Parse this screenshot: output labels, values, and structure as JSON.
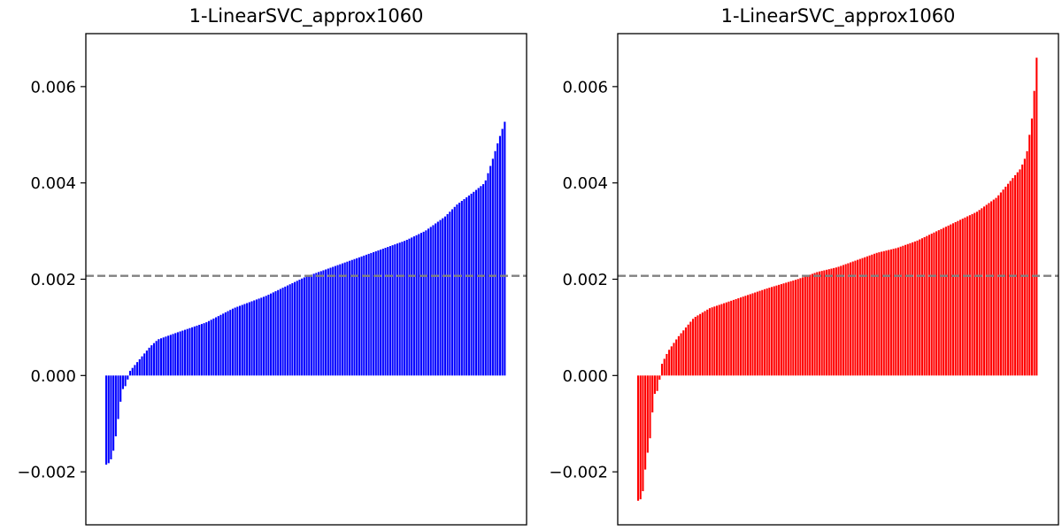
{
  "chart_data": [
    {
      "type": "bar",
      "title": "1-LinearSVC_approx1060",
      "xlabel": "",
      "ylabel": "",
      "ylim": [
        -0.0031,
        0.0071
      ],
      "yticks": [
        -0.002,
        0.0,
        0.002,
        0.004,
        0.006
      ],
      "ytick_labels": [
        "−0.002",
        "0.000",
        "0.002",
        "0.004",
        "0.006"
      ],
      "x_ticks_visible": false,
      "grid": false,
      "bar_color": "#0000ff",
      "reference_line": {
        "value": 0.00207,
        "color": "#808080",
        "style": "dashed"
      },
      "values_sorted_ascending": true,
      "value_curve_anchors": [
        [
          0.0,
          -0.00185
        ],
        [
          0.01,
          -0.0018
        ],
        [
          0.02,
          -0.0015
        ],
        [
          0.03,
          -0.0009
        ],
        [
          0.04,
          -0.0003
        ],
        [
          0.05,
          -0.0002
        ],
        [
          0.06,
          0.0001
        ],
        [
          0.09,
          0.0004
        ],
        [
          0.11,
          0.0006
        ],
        [
          0.13,
          0.00075
        ],
        [
          0.18,
          0.0009
        ],
        [
          0.25,
          0.0011
        ],
        [
          0.32,
          0.0014
        ],
        [
          0.4,
          0.00165
        ],
        [
          0.45,
          0.00185
        ],
        [
          0.5,
          0.00205
        ],
        [
          0.55,
          0.0022
        ],
        [
          0.6,
          0.00235
        ],
        [
          0.65,
          0.0025
        ],
        [
          0.7,
          0.00265
        ],
        [
          0.75,
          0.0028
        ],
        [
          0.8,
          0.003
        ],
        [
          0.85,
          0.0033
        ],
        [
          0.88,
          0.00355
        ],
        [
          0.92,
          0.0038
        ],
        [
          0.95,
          0.004
        ],
        [
          0.97,
          0.0045
        ],
        [
          0.985,
          0.0049
        ],
        [
          1.0,
          0.00527
        ]
      ],
      "n_bars": 168
    },
    {
      "type": "bar",
      "title": "1-LinearSVC_approx1060",
      "xlabel": "",
      "ylabel": "",
      "ylim": [
        -0.0031,
        0.0071
      ],
      "yticks": [
        -0.002,
        0.0,
        0.002,
        0.004,
        0.006
      ],
      "ytick_labels": [
        "−0.002",
        "0.000",
        "0.002",
        "0.004",
        "0.006"
      ],
      "x_ticks_visible": false,
      "grid": false,
      "bar_color": "#ff0000",
      "reference_line": {
        "value": 0.00207,
        "color": "#808080",
        "style": "dashed"
      },
      "values_sorted_ascending": true,
      "value_curve_anchors": [
        [
          0.0,
          -0.0026
        ],
        [
          0.01,
          -0.00255
        ],
        [
          0.02,
          -0.0018
        ],
        [
          0.03,
          -0.0013
        ],
        [
          0.04,
          -0.0004
        ],
        [
          0.05,
          -0.0003
        ],
        [
          0.06,
          0.00025
        ],
        [
          0.075,
          0.0005
        ],
        [
          0.1,
          0.0008
        ],
        [
          0.12,
          0.001
        ],
        [
          0.14,
          0.0012
        ],
        [
          0.18,
          0.0014
        ],
        [
          0.25,
          0.0016
        ],
        [
          0.32,
          0.0018
        ],
        [
          0.4,
          0.002
        ],
        [
          0.45,
          0.00215
        ],
        [
          0.5,
          0.00225
        ],
        [
          0.55,
          0.0024
        ],
        [
          0.6,
          0.00255
        ],
        [
          0.65,
          0.00265
        ],
        [
          0.7,
          0.0028
        ],
        [
          0.75,
          0.003
        ],
        [
          0.8,
          0.0032
        ],
        [
          0.85,
          0.0034
        ],
        [
          0.9,
          0.0037
        ],
        [
          0.93,
          0.004
        ],
        [
          0.96,
          0.0043
        ],
        [
          0.975,
          0.0046
        ],
        [
          0.99,
          0.00545
        ],
        [
          1.0,
          0.0066
        ]
      ],
      "n_bars": 168
    }
  ]
}
